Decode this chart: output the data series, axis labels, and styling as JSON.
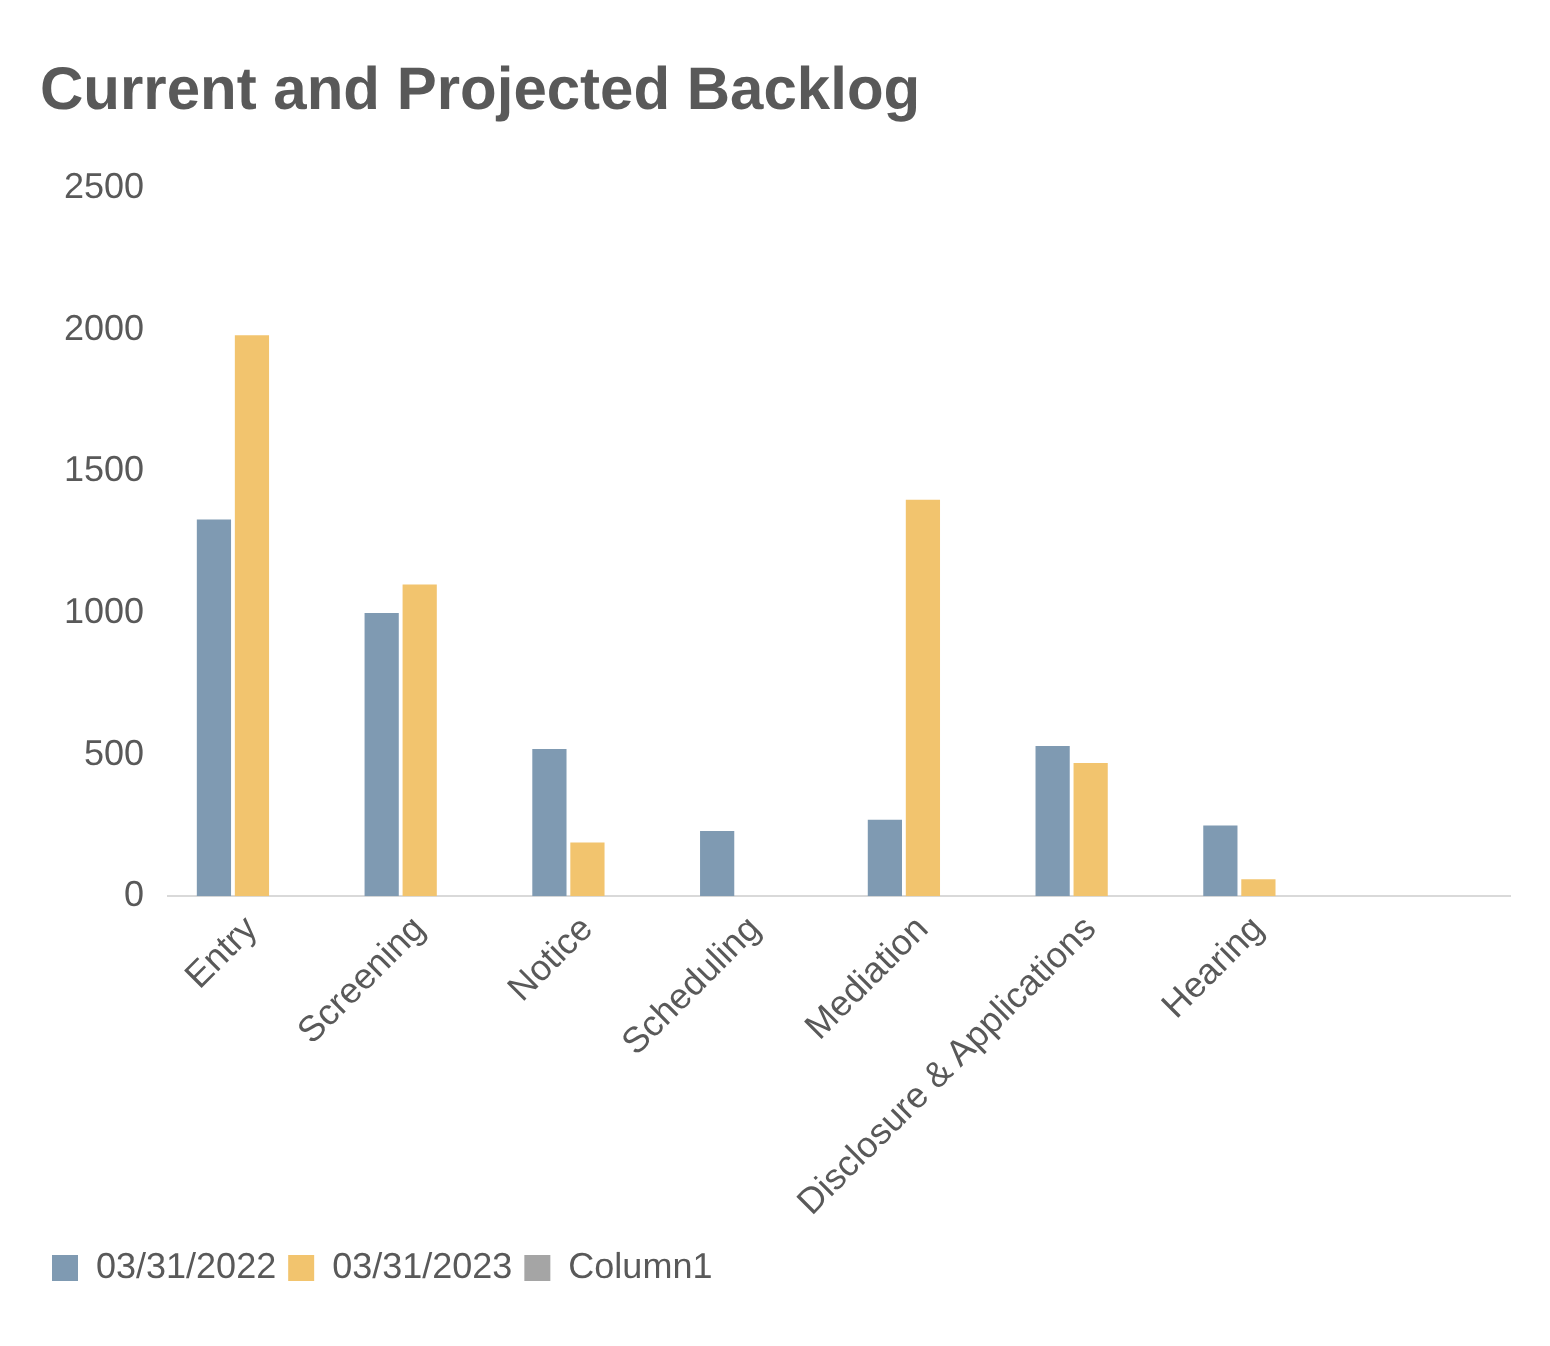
{
  "chart_data": {
    "type": "bar",
    "title": "Current and Projected Backlog",
    "categories": [
      "Entry",
      "Screening",
      "Notice",
      "Scheduling",
      "Mediation",
      "Disclosure & Applications",
      "Hearing",
      null
    ],
    "series": [
      {
        "name": "03/31/2022",
        "color": "#7f9ab2",
        "values": [
          1330,
          1000,
          520,
          230,
          270,
          530,
          250,
          null
        ]
      },
      {
        "name": "03/31/2023",
        "color": "#f2c46e",
        "values": [
          1980,
          1100,
          190,
          null,
          1400,
          470,
          60,
          null
        ]
      },
      {
        "name": "Column1",
        "color": "#a5a5a5",
        "values": [
          null,
          null,
          null,
          null,
          null,
          null,
          null,
          null
        ]
      }
    ],
    "ylim": [
      0,
      2500
    ],
    "yticks": [
      0,
      500,
      1000,
      1500,
      2000,
      2500
    ],
    "grid": false,
    "legend": "bottom"
  }
}
